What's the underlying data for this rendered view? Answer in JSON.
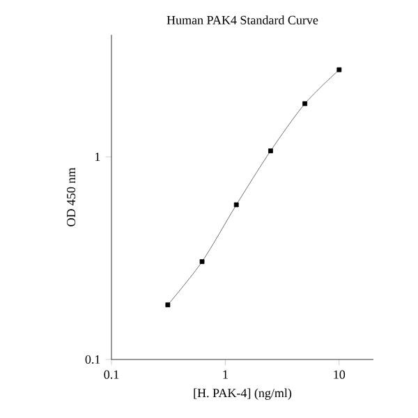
{
  "chart_data": {
    "type": "line",
    "title": "Human PAK4 Standard Curve",
    "xlabel": "[H. PAK-4] (ng/ml)",
    "ylabel": "OD 450 nm",
    "x": [
      0.3125,
      0.625,
      1.25,
      2.5,
      5,
      10
    ],
    "series": [
      {
        "color": "#000000",
        "values": [
          0.186,
          0.304,
          0.58,
          1.07,
          1.83,
          2.69
        ]
      }
    ],
    "log": "xy",
    "xlim": [
      0.1,
      20
    ],
    "ylim": [
      0.1,
      4
    ],
    "xticks": [
      0.1,
      1,
      10
    ],
    "yticks": [
      0.1,
      1
    ],
    "grid": false,
    "marker": "square",
    "line_style": "solid"
  }
}
